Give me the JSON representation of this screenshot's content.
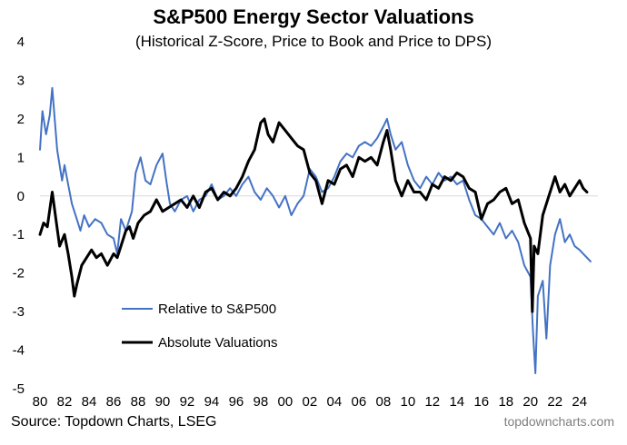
{
  "chart_data": {
    "type": "line",
    "title": "S&P500 Energy Sector Valuations",
    "subtitle": "(Historical Z-Score, Price to Book and Price to DPS)",
    "xlabel": "",
    "ylabel": "",
    "xlim": [
      1980,
      2025.5
    ],
    "ylim": [
      -5,
      4
    ],
    "x_ticks": [
      1980,
      1982,
      1984,
      1986,
      1988,
      1990,
      1992,
      1994,
      1996,
      1998,
      2000,
      2002,
      2004,
      2006,
      2008,
      2010,
      2012,
      2014,
      2016,
      2018,
      2020,
      2022,
      2024
    ],
    "x_tick_labels": [
      "80",
      "82",
      "84",
      "86",
      "88",
      "90",
      "92",
      "94",
      "96",
      "98",
      "00",
      "02",
      "04",
      "06",
      "08",
      "10",
      "12",
      "14",
      "16",
      "18",
      "20",
      "22",
      "24"
    ],
    "y_ticks": [
      -5,
      -4,
      -3,
      -2,
      -1,
      0,
      1,
      2,
      3,
      4
    ],
    "y_tick_labels": [
      "-5",
      "-4",
      "-3",
      "-2",
      "-1",
      "0",
      "1",
      "2",
      "3",
      "4"
    ],
    "series": [
      {
        "name": "Relative to S&P500",
        "color": "#4472c4",
        "x": [
          1980.0,
          1980.2,
          1980.5,
          1980.8,
          1981.0,
          1981.2,
          1981.4,
          1981.6,
          1981.8,
          1982.0,
          1982.3,
          1982.6,
          1983.0,
          1983.3,
          1983.6,
          1984.0,
          1984.5,
          1985.0,
          1985.5,
          1986.0,
          1986.3,
          1986.6,
          1987.0,
          1987.5,
          1987.8,
          1988.2,
          1988.6,
          1989.0,
          1989.5,
          1990.0,
          1990.3,
          1990.6,
          1991.0,
          1991.5,
          1992.0,
          1992.5,
          1993.0,
          1993.5,
          1994.0,
          1994.5,
          1995.0,
          1995.5,
          1996.0,
          1996.5,
          1997.0,
          1997.5,
          1998.0,
          1998.5,
          1999.0,
          1999.5,
          2000.0,
          2000.5,
          2001.0,
          2001.5,
          2002.0,
          2002.5,
          2003.0,
          2003.5,
          2004.0,
          2004.5,
          2005.0,
          2005.5,
          2006.0,
          2006.5,
          2007.0,
          2007.5,
          2008.0,
          2008.3,
          2008.6,
          2009.0,
          2009.5,
          2010.0,
          2010.5,
          2011.0,
          2011.5,
          2012.0,
          2012.5,
          2013.0,
          2013.5,
          2014.0,
          2014.5,
          2015.0,
          2015.5,
          2016.0,
          2016.5,
          2017.0,
          2017.5,
          2018.0,
          2018.5,
          2019.0,
          2019.5,
          2020.0,
          2020.2,
          2020.4,
          2020.6,
          2021.0,
          2021.3,
          2021.6,
          2022.0,
          2022.4,
          2022.8,
          2023.2,
          2023.6,
          2024.0,
          2024.3,
          2024.6,
          2024.9
        ],
        "values": [
          1.2,
          2.2,
          1.6,
          2.1,
          2.8,
          2.0,
          1.2,
          0.8,
          0.4,
          0.8,
          0.3,
          -0.2,
          -0.6,
          -0.9,
          -0.5,
          -0.8,
          -0.6,
          -0.7,
          -1.0,
          -1.1,
          -1.5,
          -0.6,
          -0.9,
          -0.4,
          0.6,
          1.0,
          0.4,
          0.3,
          0.8,
          1.1,
          0.4,
          -0.2,
          -0.4,
          -0.1,
          0.0,
          -0.4,
          -0.1,
          0.0,
          0.3,
          -0.1,
          0.0,
          0.2,
          0.0,
          0.3,
          0.5,
          0.1,
          -0.1,
          0.2,
          0.0,
          -0.3,
          0.0,
          -0.5,
          -0.2,
          0.0,
          0.7,
          0.5,
          0.1,
          0.2,
          0.5,
          0.9,
          1.1,
          1.0,
          1.3,
          1.4,
          1.3,
          1.5,
          1.8,
          2.0,
          1.6,
          1.2,
          1.4,
          0.8,
          0.4,
          0.2,
          0.5,
          0.3,
          0.6,
          0.4,
          0.5,
          0.3,
          0.4,
          -0.1,
          -0.5,
          -0.6,
          -0.8,
          -1.0,
          -0.7,
          -1.1,
          -0.9,
          -1.2,
          -1.8,
          -2.1,
          -3.5,
          -4.6,
          -2.6,
          -2.2,
          -3.7,
          -1.8,
          -1.0,
          -0.6,
          -1.2,
          -1.0,
          -1.3,
          -1.4,
          -1.5,
          -1.6,
          -1.7
        ]
      },
      {
        "name": "Absolute Valuations",
        "color": "#000000",
        "x": [
          1980.0,
          1980.3,
          1980.6,
          1981.0,
          1981.3,
          1981.6,
          1982.0,
          1982.3,
          1982.6,
          1982.8,
          1983.0,
          1983.4,
          1983.8,
          1984.2,
          1984.6,
          1985.0,
          1985.5,
          1986.0,
          1986.3,
          1986.6,
          1987.0,
          1987.3,
          1987.6,
          1988.0,
          1988.5,
          1989.0,
          1989.5,
          1990.0,
          1990.5,
          1991.0,
          1991.5,
          1992.0,
          1992.5,
          1993.0,
          1993.5,
          1994.0,
          1994.5,
          1995.0,
          1995.5,
          1996.0,
          1996.5,
          1997.0,
          1997.5,
          1998.0,
          1998.3,
          1998.6,
          1999.0,
          1999.5,
          2000.0,
          2000.5,
          2001.0,
          2001.5,
          2002.0,
          2002.5,
          2003.0,
          2003.5,
          2004.0,
          2004.5,
          2005.0,
          2005.5,
          2006.0,
          2006.5,
          2007.0,
          2007.5,
          2008.0,
          2008.3,
          2008.6,
          2009.0,
          2009.5,
          2010.0,
          2010.5,
          2011.0,
          2011.5,
          2012.0,
          2012.5,
          2013.0,
          2013.5,
          2014.0,
          2014.5,
          2015.0,
          2015.5,
          2016.0,
          2016.5,
          2017.0,
          2017.5,
          2018.0,
          2018.5,
          2019.0,
          2019.5,
          2020.0,
          2020.15,
          2020.3,
          2020.6,
          2021.0,
          2021.5,
          2022.0,
          2022.4,
          2022.8,
          2023.2,
          2023.6,
          2024.0,
          2024.3,
          2024.6
        ],
        "values": [
          -1.0,
          -0.7,
          -0.8,
          0.1,
          -0.6,
          -1.3,
          -1.0,
          -1.5,
          -2.1,
          -2.6,
          -2.3,
          -1.8,
          -1.6,
          -1.4,
          -1.6,
          -1.5,
          -1.8,
          -1.5,
          -1.6,
          -1.3,
          -0.9,
          -0.8,
          -1.1,
          -0.7,
          -0.5,
          -0.4,
          -0.1,
          -0.4,
          -0.3,
          -0.2,
          -0.1,
          -0.3,
          0.0,
          -0.3,
          0.1,
          0.2,
          -0.1,
          0.1,
          0.0,
          0.2,
          0.5,
          0.9,
          1.2,
          1.9,
          2.0,
          1.6,
          1.4,
          1.9,
          1.7,
          1.5,
          1.3,
          1.2,
          0.6,
          0.4,
          -0.2,
          0.4,
          0.3,
          0.7,
          0.8,
          0.5,
          1.0,
          0.9,
          1.0,
          0.8,
          1.4,
          1.7,
          1.2,
          0.4,
          0.0,
          0.4,
          0.1,
          0.1,
          -0.1,
          0.3,
          0.2,
          0.5,
          0.4,
          0.6,
          0.5,
          0.2,
          0.1,
          -0.6,
          -0.2,
          -0.1,
          0.1,
          0.2,
          -0.2,
          -0.1,
          -0.7,
          -1.1,
          -3.0,
          -1.3,
          -1.5,
          -0.5,
          0.0,
          0.5,
          0.1,
          0.3,
          0.0,
          0.2,
          0.4,
          0.2,
          0.1
        ]
      }
    ],
    "legend": "center-left",
    "grid": false,
    "zero_line": true
  },
  "source": "Source: Topdown Charts, LSEG",
  "watermark": "topdowncharts.com"
}
